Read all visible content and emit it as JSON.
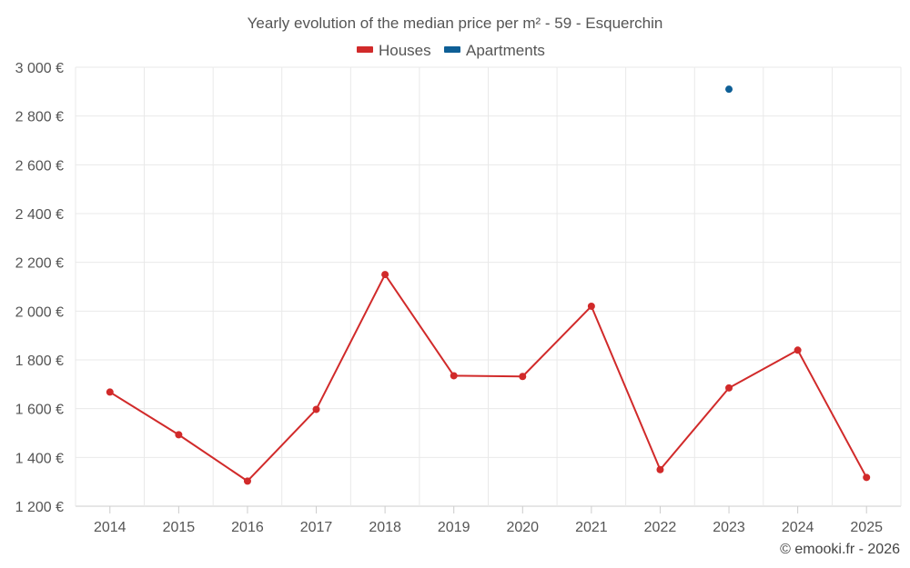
{
  "chart_data": {
    "type": "line",
    "title": "Yearly evolution of the median price per m² - 59 - Esquerchin",
    "xlabel": "",
    "ylabel": "",
    "categories": [
      "2014",
      "2015",
      "2016",
      "2017",
      "2018",
      "2019",
      "2020",
      "2021",
      "2022",
      "2023",
      "2024",
      "2025"
    ],
    "ylim": [
      1200,
      3000
    ],
    "yticks": [
      1200,
      1400,
      1600,
      1800,
      2000,
      2200,
      2400,
      2600,
      2800,
      3000
    ],
    "ytick_labels": [
      "1 200 €",
      "1 400 €",
      "1 600 €",
      "1 800 €",
      "2 000 €",
      "2 200 €",
      "2 400 €",
      "2 600 €",
      "2 800 €",
      "3 000 €"
    ],
    "grid": true,
    "legend_position": "top-center",
    "series": [
      {
        "name": "Houses",
        "color": "#d12a2a",
        "values": [
          1668,
          1493,
          1303,
          1597,
          2150,
          1735,
          1732,
          2020,
          1350,
          1685,
          1840,
          1318
        ]
      },
      {
        "name": "Apartments",
        "color": "#0e5f96",
        "values": [
          null,
          null,
          null,
          null,
          null,
          null,
          null,
          null,
          null,
          2910,
          null,
          null
        ]
      }
    ]
  },
  "credit": "© emooki.fr - 2026"
}
